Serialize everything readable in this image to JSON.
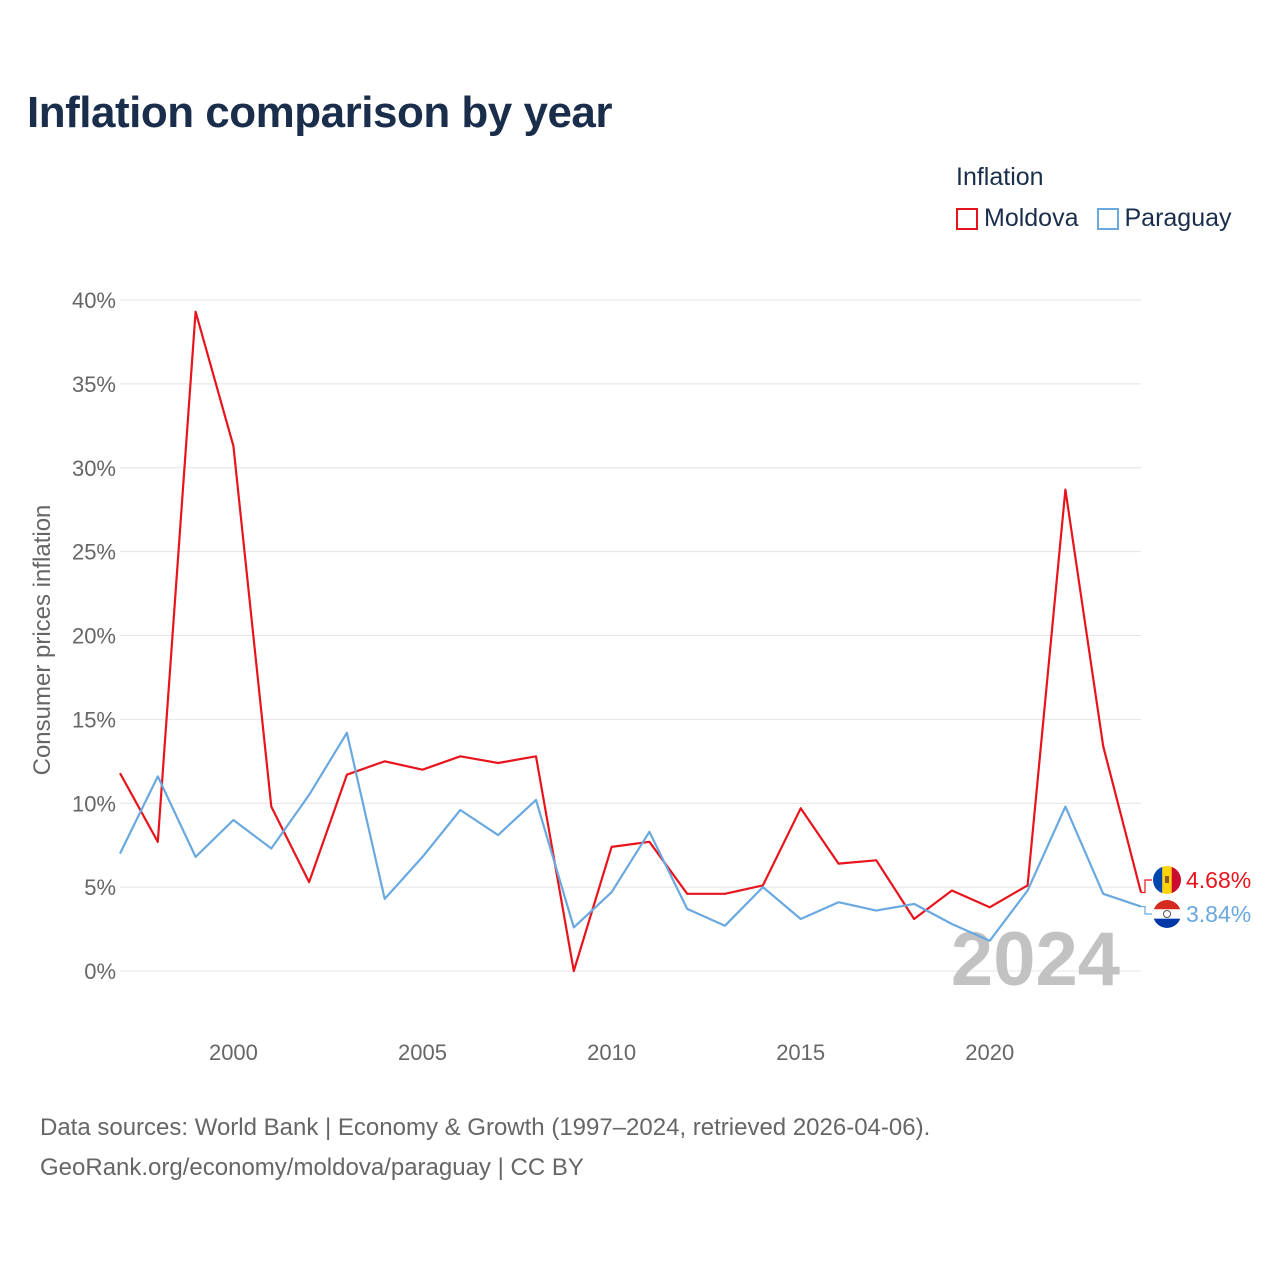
{
  "title": "Inflation comparison by year",
  "legend": {
    "title": "Inflation",
    "items": [
      {
        "label": "Moldova",
        "color": "#e8141c"
      },
      {
        "label": "Paraguay",
        "color": "#6aa8e0"
      }
    ]
  },
  "chart_data": {
    "type": "line",
    "title": "Inflation comparison by year",
    "xlabel": "",
    "ylabel": "Consumer prices inflation",
    "xlim": [
      1997,
      2024
    ],
    "ylim": [
      0,
      40
    ],
    "grid": true,
    "x_ticks": [
      2000,
      2005,
      2010,
      2015,
      2020
    ],
    "x_tick_labels": [
      "2000",
      "2005",
      "2010",
      "2015",
      "2020"
    ],
    "y_ticks": [
      0,
      5,
      10,
      15,
      20,
      25,
      30,
      35,
      40
    ],
    "y_tick_labels": [
      "0%",
      "5%",
      "10%",
      "15%",
      "20%",
      "25%",
      "30%",
      "35%",
      "40%"
    ],
    "x": [
      1997,
      1998,
      1999,
      2000,
      2001,
      2002,
      2003,
      2004,
      2005,
      2006,
      2007,
      2008,
      2009,
      2010,
      2011,
      2012,
      2013,
      2014,
      2015,
      2016,
      2017,
      2018,
      2019,
      2020,
      2021,
      2022,
      2023,
      2024
    ],
    "series": [
      {
        "name": "Moldova",
        "color": "#e8141c",
        "values": [
          11.8,
          7.7,
          39.3,
          31.3,
          9.8,
          5.3,
          11.7,
          12.5,
          12.0,
          12.8,
          12.4,
          12.8,
          0.0,
          7.4,
          7.7,
          4.6,
          4.6,
          5.1,
          9.7,
          6.4,
          6.6,
          3.1,
          4.8,
          3.8,
          5.1,
          28.7,
          13.4,
          4.68
        ],
        "end_label": "4.68%"
      },
      {
        "name": "Paraguay",
        "color": "#6aa8e0",
        "values": [
          7.0,
          11.6,
          6.8,
          9.0,
          7.3,
          10.5,
          14.2,
          4.3,
          6.8,
          9.6,
          8.1,
          10.2,
          2.6,
          4.7,
          8.3,
          3.7,
          2.7,
          5.0,
          3.1,
          4.1,
          3.6,
          4.0,
          2.8,
          1.8,
          4.8,
          9.8,
          4.6,
          3.84
        ],
        "end_label": "3.84%"
      }
    ],
    "annotations": [
      "2024"
    ]
  },
  "footer": {
    "line1": "Data sources: World Bank | Economy & Growth (1997–2024, retrieved 2026-04-06).",
    "line2": "GeoRank.org/economy/moldova/paraguay | CC BY"
  }
}
